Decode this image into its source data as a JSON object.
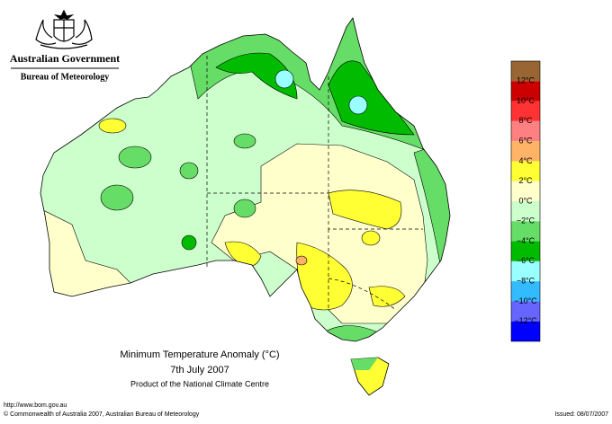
{
  "header": {
    "government": "Australian Government",
    "agency": "Bureau of Meteorology"
  },
  "map": {
    "title": "Minimum Temperature Anomaly (°C)",
    "date": "7th July 2007",
    "producer": "Product of the National Climate Centre"
  },
  "legend": {
    "colors": [
      "#996633",
      "#cc0000",
      "#ff3333",
      "#ff8080",
      "#ffb366",
      "#ffff33",
      "#ffffcc",
      "#ccffcc",
      "#66dd66",
      "#00bb00",
      "#99ffff",
      "#33bbff",
      "#6666ff",
      "#0000ff"
    ],
    "labels": [
      "12°C",
      "10°C",
      "8°C",
      "6°C",
      "4°C",
      "2°C",
      "0°C",
      "−2°C",
      "−4°C",
      "−6°C",
      "−8°C",
      "−10°C",
      "−12°C"
    ]
  },
  "footer": {
    "url": "http://www.bom.gov.au",
    "copyright": "© Commonwealth of Australia 2007, Australian Bureau of Meteorology",
    "issued": "Issued: 08/07/2007"
  }
}
